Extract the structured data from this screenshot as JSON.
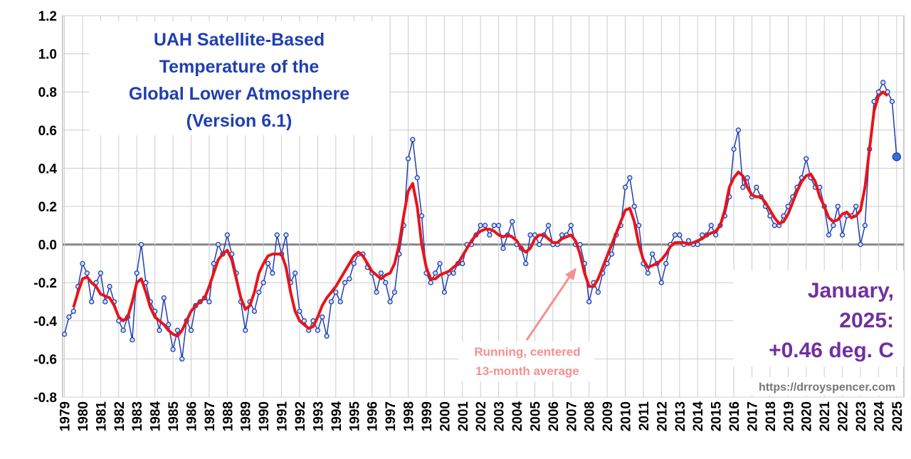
{
  "chart_data": {
    "type": "line",
    "title": [
      "UAH Satellite-Based",
      "Temperature of the",
      "Global Lower Atmosphere",
      "(Version 6.1)"
    ],
    "callout": [
      "January,",
      "2025:",
      "+0.46 deg. C"
    ],
    "annotation": [
      "Running, centered",
      "13-month average"
    ],
    "source": "https://drroyspencer.com",
    "xlim": [
      1978.9,
      2025.4
    ],
    "xticks": [
      1979,
      1980,
      1981,
      1982,
      1983,
      1984,
      1985,
      1986,
      1987,
      1988,
      1989,
      1990,
      1991,
      1992,
      1993,
      1994,
      1995,
      1996,
      1997,
      1998,
      1999,
      2000,
      2001,
      2002,
      2003,
      2004,
      2005,
      2006,
      2007,
      2008,
      2009,
      2010,
      2011,
      2012,
      2013,
      2014,
      2015,
      2016,
      2017,
      2018,
      2019,
      2020,
      2021,
      2022,
      2023,
      2024,
      2025
    ],
    "ylim": [
      -0.8,
      1.2
    ],
    "yticks": [
      1.2,
      {
        "value": 1,
        "label": "1.0"
      },
      0.8,
      0.6,
      0.4,
      0.2,
      {
        "value": 0,
        "label": "0.0"
      },
      -0.2,
      -0.4,
      -0.6,
      -0.8
    ],
    "grid": true,
    "series": [
      {
        "color": "#1f3fb0",
        "markers": true,
        "x": [
          1979,
          1979.25,
          1979.5,
          1979.75,
          1980,
          1980.25,
          1980.5,
          1980.75,
          1981,
          1981.25,
          1981.5,
          1981.75,
          1982,
          1982.25,
          1982.5,
          1982.75,
          1983,
          1983.25,
          1983.5,
          1983.75,
          1984,
          1984.25,
          1984.5,
          1984.75,
          1985,
          1985.25,
          1985.5,
          1985.75,
          1986,
          1986.25,
          1986.5,
          1986.75,
          1987,
          1987.25,
          1987.5,
          1987.75,
          1988,
          1988.25,
          1988.5,
          1988.75,
          1989,
          1989.25,
          1989.5,
          1989.75,
          1990,
          1990.25,
          1990.5,
          1990.75,
          1991,
          1991.25,
          1991.5,
          1991.75,
          1992,
          1992.25,
          1992.5,
          1992.75,
          1993,
          1993.25,
          1993.5,
          1993.75,
          1994,
          1994.25,
          1994.5,
          1994.75,
          1995,
          1995.25,
          1995.5,
          1995.75,
          1996,
          1996.25,
          1996.5,
          1996.75,
          1997,
          1997.25,
          1997.5,
          1997.75,
          1998,
          1998.25,
          1998.5,
          1998.75,
          1999,
          1999.25,
          1999.5,
          1999.75,
          2000,
          2000.25,
          2000.5,
          2000.75,
          2001,
          2001.25,
          2001.5,
          2001.75,
          2002,
          2002.25,
          2002.5,
          2002.75,
          2003,
          2003.25,
          2003.5,
          2003.75,
          2004,
          2004.25,
          2004.5,
          2004.75,
          2005,
          2005.25,
          2005.5,
          2005.75,
          2006,
          2006.25,
          2006.5,
          2006.75,
          2007,
          2007.25,
          2007.5,
          2007.75,
          2008,
          2008.25,
          2008.5,
          2008.75,
          2009,
          2009.25,
          2009.5,
          2009.75,
          2010,
          2010.25,
          2010.5,
          2010.75,
          2011,
          2011.25,
          2011.5,
          2011.75,
          2012,
          2012.25,
          2012.5,
          2012.75,
          2013,
          2013.25,
          2013.5,
          2013.75,
          2014,
          2014.25,
          2014.5,
          2014.75,
          2015,
          2015.25,
          2015.5,
          2015.75,
          2016,
          2016.25,
          2016.5,
          2016.75,
          2017,
          2017.25,
          2017.5,
          2017.75,
          2018,
          2018.25,
          2018.5,
          2018.75,
          2019,
          2019.25,
          2019.5,
          2019.75,
          2020,
          2020.25,
          2020.5,
          2020.75,
          2021,
          2021.25,
          2021.5,
          2021.75,
          2022,
          2022.25,
          2022.5,
          2022.75,
          2023,
          2023.25,
          2023.5,
          2023.75,
          2024,
          2024.25,
          2024.5,
          2024.75,
          2025
        ],
        "values": [
          -0.47,
          -0.38,
          -0.35,
          -0.22,
          -0.1,
          -0.15,
          -0.3,
          -0.2,
          -0.15,
          -0.3,
          -0.22,
          -0.3,
          -0.4,
          -0.45,
          -0.38,
          -0.5,
          -0.15,
          0,
          -0.2,
          -0.3,
          -0.35,
          -0.45,
          -0.28,
          -0.42,
          -0.55,
          -0.45,
          -0.6,
          -0.4,
          -0.45,
          -0.32,
          -0.3,
          -0.28,
          -0.3,
          -0.1,
          0,
          -0.05,
          0.05,
          -0.05,
          -0.15,
          -0.3,
          -0.45,
          -0.3,
          -0.35,
          -0.25,
          -0.2,
          -0.1,
          -0.15,
          0.05,
          -0.05,
          0.05,
          -0.2,
          -0.15,
          -0.35,
          -0.4,
          -0.45,
          -0.4,
          -0.45,
          -0.38,
          -0.48,
          -0.3,
          -0.25,
          -0.3,
          -0.2,
          -0.18,
          -0.1,
          -0.05,
          -0.05,
          -0.12,
          -0.15,
          -0.25,
          -0.15,
          -0.2,
          -0.3,
          -0.25,
          -0.05,
          0.1,
          0.45,
          0.55,
          0.35,
          0.15,
          -0.15,
          -0.2,
          -0.15,
          -0.1,
          -0.25,
          -0.15,
          -0.15,
          -0.1,
          -0.1,
          0,
          0,
          0.05,
          0.1,
          0.1,
          0.05,
          0.1,
          0.1,
          -0.02,
          0.05,
          0.12,
          0,
          -0.02,
          -0.1,
          0.05,
          0.05,
          0,
          0.05,
          0.1,
          0,
          0,
          0.05,
          0.05,
          0.1,
          0,
          0,
          -0.1,
          -0.3,
          -0.2,
          -0.25,
          -0.15,
          -0.1,
          -0.05,
          0.05,
          0.1,
          0.3,
          0.35,
          0.2,
          0.1,
          -0.1,
          -0.15,
          -0.05,
          -0.1,
          -0.2,
          -0.1,
          0,
          0.05,
          0.05,
          0,
          0.02,
          0,
          0,
          0.05,
          0.05,
          0.1,
          0.05,
          0.1,
          0.15,
          0.25,
          0.5,
          0.6,
          0.3,
          0.35,
          0.25,
          0.3,
          0.25,
          0.2,
          0.15,
          0.1,
          0.1,
          0.15,
          0.2,
          0.25,
          0.3,
          0.35,
          0.45,
          0.35,
          0.3,
          0.3,
          0.2,
          0.05,
          0.1,
          0.2,
          0.05,
          0.15,
          0.15,
          0.2,
          0,
          0.1,
          0.5,
          0.75,
          0.8,
          0.85,
          0.8,
          0.75,
          0.46
        ]
      },
      {
        "color": "#e8141a",
        "markers": false,
        "x": [
          1979.5,
          1979.75,
          1980,
          1980.25,
          1980.5,
          1980.75,
          1981,
          1981.25,
          1981.5,
          1981.75,
          1982,
          1982.25,
          1982.5,
          1982.75,
          1983,
          1983.25,
          1983.5,
          1983.75,
          1984,
          1984.25,
          1984.5,
          1984.75,
          1985,
          1985.25,
          1985.5,
          1985.75,
          1986,
          1986.25,
          1986.5,
          1986.75,
          1987,
          1987.25,
          1987.5,
          1987.75,
          1988,
          1988.25,
          1988.5,
          1988.75,
          1989,
          1989.25,
          1989.5,
          1989.75,
          1990,
          1990.25,
          1990.5,
          1990.75,
          1991,
          1991.25,
          1991.5,
          1991.75,
          1992,
          1992.25,
          1992.5,
          1992.75,
          1993,
          1993.25,
          1993.5,
          1993.75,
          1994,
          1994.25,
          1994.5,
          1994.75,
          1995,
          1995.25,
          1995.5,
          1995.75,
          1996,
          1996.25,
          1996.5,
          1996.75,
          1997,
          1997.25,
          1997.5,
          1997.75,
          1998,
          1998.25,
          1998.5,
          1998.75,
          1999,
          1999.25,
          1999.5,
          1999.75,
          2000,
          2000.25,
          2000.5,
          2000.75,
          2001,
          2001.25,
          2001.5,
          2001.75,
          2002,
          2002.25,
          2002.5,
          2002.75,
          2003,
          2003.25,
          2003.5,
          2003.75,
          2004,
          2004.25,
          2004.5,
          2004.75,
          2005,
          2005.25,
          2005.5,
          2005.75,
          2006,
          2006.25,
          2006.5,
          2006.75,
          2007,
          2007.25,
          2007.5,
          2007.75,
          2008,
          2008.25,
          2008.5,
          2008.75,
          2009,
          2009.25,
          2009.5,
          2009.75,
          2010,
          2010.25,
          2010.5,
          2010.75,
          2011,
          2011.25,
          2011.5,
          2011.75,
          2012,
          2012.25,
          2012.5,
          2012.75,
          2013,
          2013.25,
          2013.5,
          2013.75,
          2014,
          2014.25,
          2014.5,
          2014.75,
          2015,
          2015.25,
          2015.5,
          2015.75,
          2016,
          2016.25,
          2016.5,
          2016.75,
          2017,
          2017.25,
          2017.5,
          2017.75,
          2018,
          2018.25,
          2018.5,
          2018.75,
          2019,
          2019.25,
          2019.5,
          2019.75,
          2020,
          2020.25,
          2020.5,
          2020.75,
          2021,
          2021.25,
          2021.5,
          2021.75,
          2022,
          2022.25,
          2022.5,
          2022.75,
          2023,
          2023.25,
          2023.5,
          2023.75,
          2024,
          2024.25,
          2024.5
        ],
        "values": [
          -0.33,
          -0.25,
          -0.18,
          -0.17,
          -0.2,
          -0.22,
          -0.26,
          -0.27,
          -0.28,
          -0.32,
          -0.38,
          -0.4,
          -0.38,
          -0.3,
          -0.2,
          -0.18,
          -0.25,
          -0.33,
          -0.38,
          -0.4,
          -0.42,
          -0.45,
          -0.47,
          -0.48,
          -0.45,
          -0.4,
          -0.35,
          -0.32,
          -0.3,
          -0.28,
          -0.22,
          -0.15,
          -0.08,
          -0.05,
          -0.03,
          -0.08,
          -0.18,
          -0.28,
          -0.34,
          -0.32,
          -0.25,
          -0.15,
          -0.1,
          -0.06,
          -0.05,
          -0.05,
          -0.05,
          -0.12,
          -0.25,
          -0.35,
          -0.4,
          -0.42,
          -0.44,
          -0.43,
          -0.38,
          -0.32,
          -0.28,
          -0.25,
          -0.22,
          -0.18,
          -0.14,
          -0.1,
          -0.06,
          -0.04,
          -0.06,
          -0.1,
          -0.14,
          -0.16,
          -0.18,
          -0.16,
          -0.15,
          -0.1,
          0,
          0.15,
          0.28,
          0.32,
          0.2,
          0,
          -0.12,
          -0.18,
          -0.18,
          -0.16,
          -0.15,
          -0.14,
          -0.12,
          -0.1,
          -0.06,
          -0.02,
          0.02,
          0.05,
          0.07,
          0.08,
          0.08,
          0.07,
          0.05,
          0.04,
          0.05,
          0.04,
          0.02,
          -0.02,
          -0.04,
          -0.02,
          0.03,
          0.05,
          0.05,
          0.03,
          0.01,
          0.01,
          0.03,
          0.04,
          0.05,
          0.02,
          -0.05,
          -0.15,
          -0.22,
          -0.22,
          -0.18,
          -0.12,
          -0.06,
          0,
          0.06,
          0.12,
          0.18,
          0.19,
          0.12,
          0,
          -0.08,
          -0.12,
          -0.11,
          -0.1,
          -0.08,
          -0.05,
          -0.01,
          0.01,
          0.01,
          0.01,
          0,
          0.01,
          0.02,
          0.03,
          0.05,
          0.06,
          0.07,
          0.1,
          0.18,
          0.3,
          0.35,
          0.38,
          0.36,
          0.3,
          0.26,
          0.25,
          0.25,
          0.22,
          0.18,
          0.14,
          0.11,
          0.12,
          0.16,
          0.22,
          0.28,
          0.33,
          0.36,
          0.37,
          0.33,
          0.25,
          0.2,
          0.14,
          0.12,
          0.13,
          0.16,
          0.17,
          0.14,
          0.15,
          0.18,
          0.3,
          0.5,
          0.7,
          0.78,
          0.8,
          0.78
        ]
      }
    ]
  }
}
